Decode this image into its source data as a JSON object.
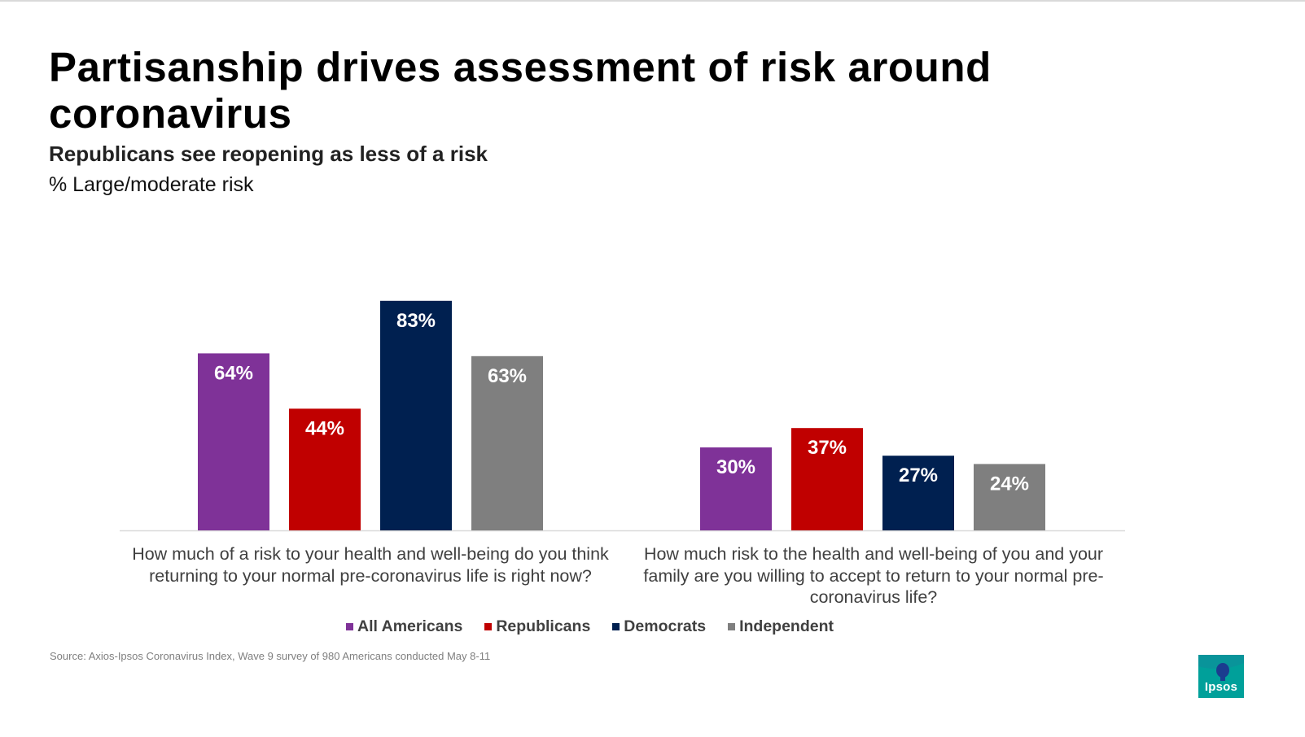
{
  "header": {
    "title": "Partisanship drives assessment of risk around coronavirus",
    "subtitle": "Republicans see reopening as less of a risk",
    "measure": "% Large/moderate risk"
  },
  "chart_data": {
    "type": "bar",
    "title": "Partisanship drives assessment of risk around coronavirus",
    "subtitle": "Republicans see reopening as less of a risk",
    "ylabel": "% Large/moderate risk",
    "xlabel": "",
    "ylim": [
      0,
      100
    ],
    "grid": false,
    "legend_position": "bottom",
    "categories": [
      "How much of a risk to your health and well-being do you think returning to your normal pre-coronavirus life is right now?",
      "How much risk to the health and well-being of you and your family are you willing to accept to return to your normal pre-coronavirus life?"
    ],
    "series": [
      {
        "name": "All Americans",
        "color": "#7f3298",
        "values": [
          64,
          30
        ],
        "labels": [
          "64%",
          "30%"
        ]
      },
      {
        "name": "Republicans",
        "color": "#c00000",
        "values": [
          44,
          37
        ],
        "labels": [
          "44%",
          "37%"
        ]
      },
      {
        "name": "Democrats",
        "color": "#002050",
        "values": [
          83,
          27
        ],
        "labels": [
          "83%",
          "27%"
        ]
      },
      {
        "name": "Independent",
        "color": "#7f7f7f",
        "values": [
          63,
          24
        ],
        "labels": [
          "63%",
          "24%"
        ]
      }
    ]
  },
  "footer": {
    "source": "Source: Axios-Ipsos Coronavirus Index, Wave 9 survey of 980 Americans conducted May 8-11",
    "logo_text": "Ipsos",
    "logo_color": "#00a09a",
    "logo_accent": "#1b3c8f"
  }
}
